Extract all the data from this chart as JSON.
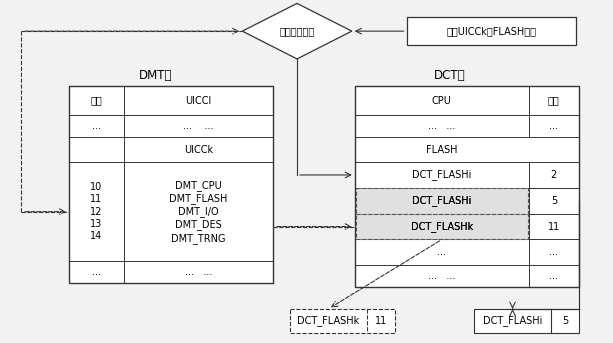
{
  "bg_color": "#f2f2f2",
  "diamond_label": "驱动匹配处理",
  "input_box_label": "输入UICCk新FLASH属性",
  "dmt_label": "DMT表",
  "dct_label": "DCT表",
  "dmt_rows_col1": [
    "地址",
    "...",
    "",
    "10\n11\n12\n13\n14",
    "..."
  ],
  "dmt_rows_col2": [
    "UICCl",
    "...    ...",
    "UICCk",
    "DMT_CPU\nDMT_FLASH\nDMT_I/O\nDMT_DES\nDMT_TRNG",
    "...   ..."
  ],
  "dct_rows_col1": [
    "CPU",
    "...   ...",
    "FLASH",
    "DCT_FLASHi",
    "DCT_FLASHi",
    "DCT_FLASHk",
    "...",
    "...   ..."
  ],
  "dct_rows_col2": [
    "地址",
    "...",
    "",
    "2",
    "5",
    "11",
    "...",
    "..."
  ],
  "bottom_k_label": "DCT_FLASHk",
  "bottom_k_val": "11",
  "bottom_i_label": "DCT_FLASHi",
  "bottom_i_val": "5",
  "font_size": 7,
  "font_size_label": 8.5
}
